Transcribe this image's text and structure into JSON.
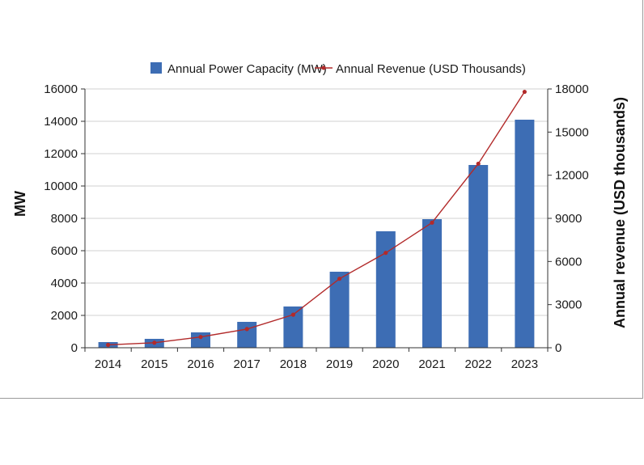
{
  "chart_data": {
    "type": "bar",
    "categories": [
      "2014",
      "2015",
      "2016",
      "2017",
      "2018",
      "2019",
      "2020",
      "2021",
      "2022",
      "2023"
    ],
    "series": [
      {
        "name": "Annual Power Capacity (MW)",
        "type": "bar",
        "axis": "left",
        "color": "#3d6db4",
        "values": [
          350,
          550,
          950,
          1600,
          2550,
          4700,
          7200,
          7950,
          11300,
          14100
        ]
      },
      {
        "name": "Annual Revenue (USD Thousands)",
        "type": "line",
        "axis": "right",
        "color": "#b22a2a",
        "values": [
          200,
          350,
          750,
          1300,
          2300,
          4800,
          6600,
          8700,
          12800,
          17800
        ]
      }
    ],
    "ylabel": "MW",
    "y2label": "Annual revenue (USD  thousands)",
    "ylim": [
      0,
      16000
    ],
    "y2lim": [
      0,
      18000
    ],
    "yticks": [
      "0",
      "2000",
      "4000",
      "6000",
      "8000",
      "10000",
      "12000",
      "14000",
      "16000"
    ],
    "y2ticks": [
      "0",
      "3000",
      "6000",
      "9000",
      "12000",
      "15000",
      "18000"
    ],
    "grid": true,
    "legend": "top"
  }
}
